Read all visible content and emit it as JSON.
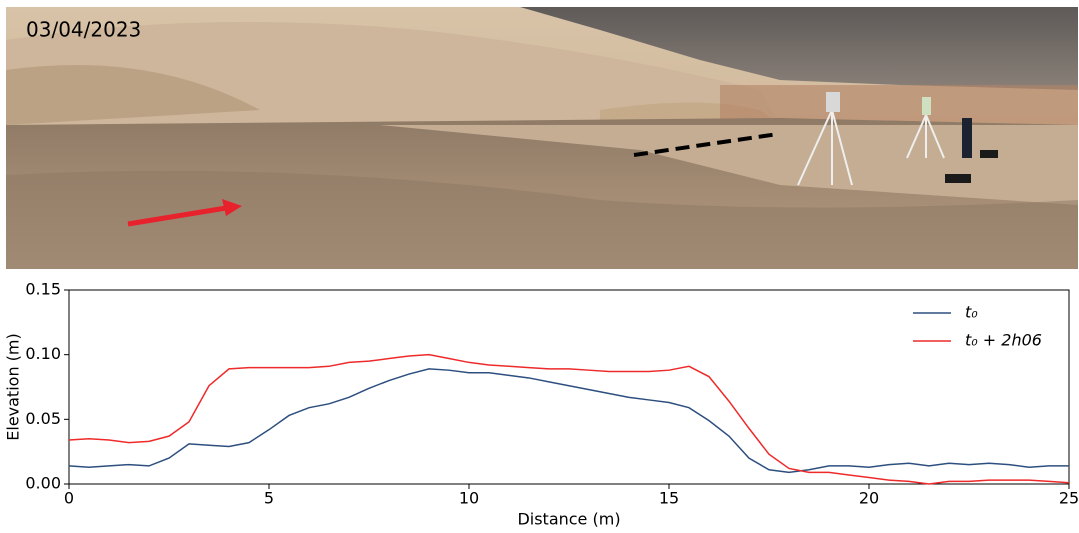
{
  "photo": {
    "date": "03/04/2023"
  },
  "chart_data": {
    "type": "line",
    "xlabel": "Distance (m)",
    "ylabel": "Elevation (m)",
    "x": [
      0,
      0.5,
      1,
      1.5,
      2,
      2.5,
      3,
      3.5,
      4,
      4.5,
      5,
      5.5,
      6,
      6.5,
      7,
      7.5,
      8,
      8.5,
      9,
      9.5,
      10,
      10.5,
      11,
      11.5,
      12,
      12.5,
      13,
      13.5,
      14,
      14.5,
      15,
      15.5,
      16,
      16.5,
      17,
      17.5,
      18,
      18.5,
      19,
      19.5,
      20,
      20.5,
      21,
      21.5,
      22,
      22.5,
      23,
      23.5,
      24,
      24.5,
      25
    ],
    "series": [
      {
        "name": "t₀",
        "color": "#2d4f7f",
        "values": [
          0.014,
          0.013,
          0.014,
          0.015,
          0.014,
          0.02,
          0.031,
          0.03,
          0.029,
          0.032,
          0.042,
          0.053,
          0.059,
          0.062,
          0.067,
          0.074,
          0.08,
          0.085,
          0.089,
          0.088,
          0.086,
          0.086,
          0.084,
          0.082,
          0.079,
          0.076,
          0.073,
          0.07,
          0.067,
          0.065,
          0.063,
          0.059,
          0.049,
          0.037,
          0.02,
          0.011,
          0.009,
          0.011,
          0.014,
          0.014,
          0.013,
          0.015,
          0.016,
          0.014,
          0.016,
          0.015,
          0.016,
          0.015,
          0.013,
          0.014,
          0.014
        ]
      },
      {
        "name": "t₀ + 2h06",
        "color": "#ee2a2a",
        "values": [
          0.034,
          0.035,
          0.034,
          0.032,
          0.033,
          0.037,
          0.048,
          0.076,
          0.089,
          0.09,
          0.09,
          0.09,
          0.09,
          0.091,
          0.094,
          0.095,
          0.097,
          0.099,
          0.1,
          0.097,
          0.094,
          0.092,
          0.091,
          0.09,
          0.089,
          0.089,
          0.088,
          0.087,
          0.087,
          0.087,
          0.088,
          0.091,
          0.083,
          0.064,
          0.043,
          0.023,
          0.012,
          0.009,
          0.009,
          0.007,
          0.005,
          0.003,
          0.002,
          0.0,
          0.002,
          0.002,
          0.003,
          0.003,
          0.003,
          0.002,
          0.001
        ]
      }
    ],
    "xlim": [
      0,
      25
    ],
    "xticks": [
      0,
      5,
      10,
      15,
      20,
      25
    ],
    "ylim": [
      0,
      0.15
    ],
    "yticks": [
      {
        "value": 0,
        "label": "0.00"
      },
      {
        "value": 0.05,
        "label": "0.05"
      },
      {
        "value": 0.1,
        "label": "0.10"
      },
      {
        "value": 0.15,
        "label": "0.15"
      }
    ],
    "legend": "upper right"
  }
}
